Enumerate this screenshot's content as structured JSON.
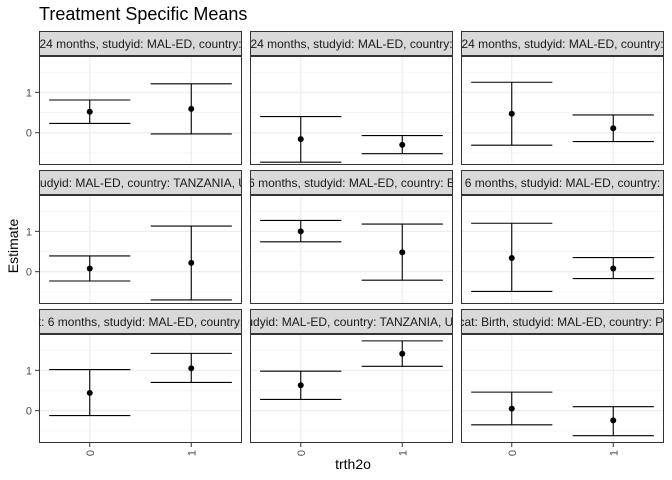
{
  "chart_data": {
    "type": "errorbar",
    "title": "Treatment Specific Means",
    "xlabel": "trth2o",
    "ylabel": "Estimate",
    "categories": [
      "0",
      "1"
    ],
    "y_ticks": [
      0,
      1
    ],
    "ylim": [
      -0.8,
      1.9
    ],
    "grid": true,
    "facets": [
      {
        "label": "24 months, studyid: MAL-ED, country:",
        "points": [
          {
            "x": "0",
            "estimate": 0.52,
            "lower": 0.23,
            "upper": 0.81
          },
          {
            "x": "1",
            "estimate": 0.59,
            "lower": -0.03,
            "upper": 1.21
          }
        ]
      },
      {
        "label": "24 months, studyid: MAL-ED, country:",
        "points": [
          {
            "x": "0",
            "estimate": -0.16,
            "lower": -0.73,
            "upper": 0.4
          },
          {
            "x": "1",
            "estimate": -0.3,
            "lower": -0.52,
            "upper": -0.07
          }
        ]
      },
      {
        "label": "24 months, studyid: MAL-ED, country:",
        "points": [
          {
            "x": "0",
            "estimate": 0.47,
            "lower": -0.31,
            "upper": 1.25
          },
          {
            "x": "1",
            "estimate": 0.11,
            "lower": -0.22,
            "upper": 0.44
          }
        ]
      },
      {
        "label": "studyid: MAL-ED, country: TANZANIA, UI",
        "points": [
          {
            "x": "0",
            "estimate": 0.08,
            "lower": -0.23,
            "upper": 0.39
          },
          {
            "x": "1",
            "estimate": 0.22,
            "lower": -0.7,
            "upper": 1.13
          }
        ]
      },
      {
        "label": "6 months, studyid: MAL-ED, country: E",
        "points": [
          {
            "x": "0",
            "estimate": 1.0,
            "lower": 0.74,
            "upper": 1.27
          },
          {
            "x": "1",
            "estimate": 0.48,
            "lower": -0.21,
            "upper": 1.18
          }
        ]
      },
      {
        "label": "6 months, studyid: MAL-ED, country:",
        "points": [
          {
            "x": "0",
            "estimate": 0.34,
            "lower": -0.49,
            "upper": 1.2
          },
          {
            "x": "1",
            "estimate": 0.08,
            "lower": -0.17,
            "upper": 0.35
          }
        ]
      },
      {
        "label": "t: 6 months, studyid: MAL-ED, country:",
        "points": [
          {
            "x": "0",
            "estimate": 0.44,
            "lower": -0.12,
            "upper": 1.02
          },
          {
            "x": "1",
            "estimate": 1.05,
            "lower": 0.7,
            "upper": 1.42
          }
        ]
      },
      {
        "label": "udyid: MAL-ED, country: TANZANIA, UI",
        "points": [
          {
            "x": "0",
            "estimate": 0.63,
            "lower": 0.28,
            "upper": 0.98
          },
          {
            "x": "1",
            "estimate": 1.41,
            "lower": 1.1,
            "upper": 1.73
          }
        ]
      },
      {
        "label": "cat: Birth, studyid: MAL-ED, country: PI",
        "points": [
          {
            "x": "0",
            "estimate": 0.05,
            "lower": -0.35,
            "upper": 0.46
          },
          {
            "x": "1",
            "estimate": -0.24,
            "lower": -0.62,
            "upper": 0.1
          }
        ]
      }
    ]
  }
}
